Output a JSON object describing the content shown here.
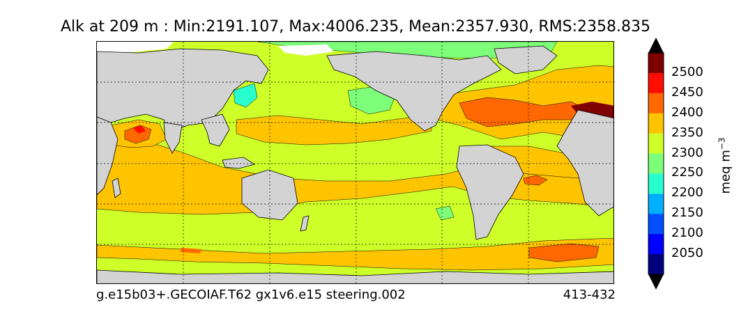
{
  "title": "Alk at 209 m : Min:2191.107, Max:4006.235, Mean:2357.930, RMS:2358.835",
  "caption_left": "g.e15b03+.GECOIAF.T62 gx1v6.e15 steering.002",
  "caption_right": "413-432",
  "colorbar": {
    "unit_label": "meq m",
    "unit_exponent": "−3",
    "ticks": [
      "2500",
      "2450",
      "2400",
      "2350",
      "2300",
      "2250",
      "2200",
      "2150",
      "2100",
      "2050"
    ],
    "levels": [
      {
        "value_range": [
          2000,
          2050
        ],
        "color": "#00007f"
      },
      {
        "value_range": [
          2050,
          2100
        ],
        "color": "#0000ff"
      },
      {
        "value_range": [
          2100,
          2150
        ],
        "color": "#0050ff"
      },
      {
        "value_range": [
          2150,
          2200
        ],
        "color": "#00b0ff"
      },
      {
        "value_range": [
          2200,
          2250
        ],
        "color": "#29ffce"
      },
      {
        "value_range": [
          2250,
          2300
        ],
        "color": "#7dff7a"
      },
      {
        "value_range": [
          2300,
          2350
        ],
        "color": "#ceff29"
      },
      {
        "value_range": [
          2350,
          2400
        ],
        "color": "#ffc400"
      },
      {
        "value_range": [
          2400,
          2450
        ],
        "color": "#ff6800"
      },
      {
        "value_range": [
          2450,
          2500
        ],
        "color": "#ff0d00"
      },
      {
        "value_range": [
          2500,
          2550
        ],
        "color": "#7f0000"
      }
    ],
    "extend_low_color": "#000000",
    "extend_high_color": "#000000"
  },
  "map": {
    "land_color": "#d3d3d3",
    "background_level_color": "#ceff29",
    "grid": "dotted"
  }
}
